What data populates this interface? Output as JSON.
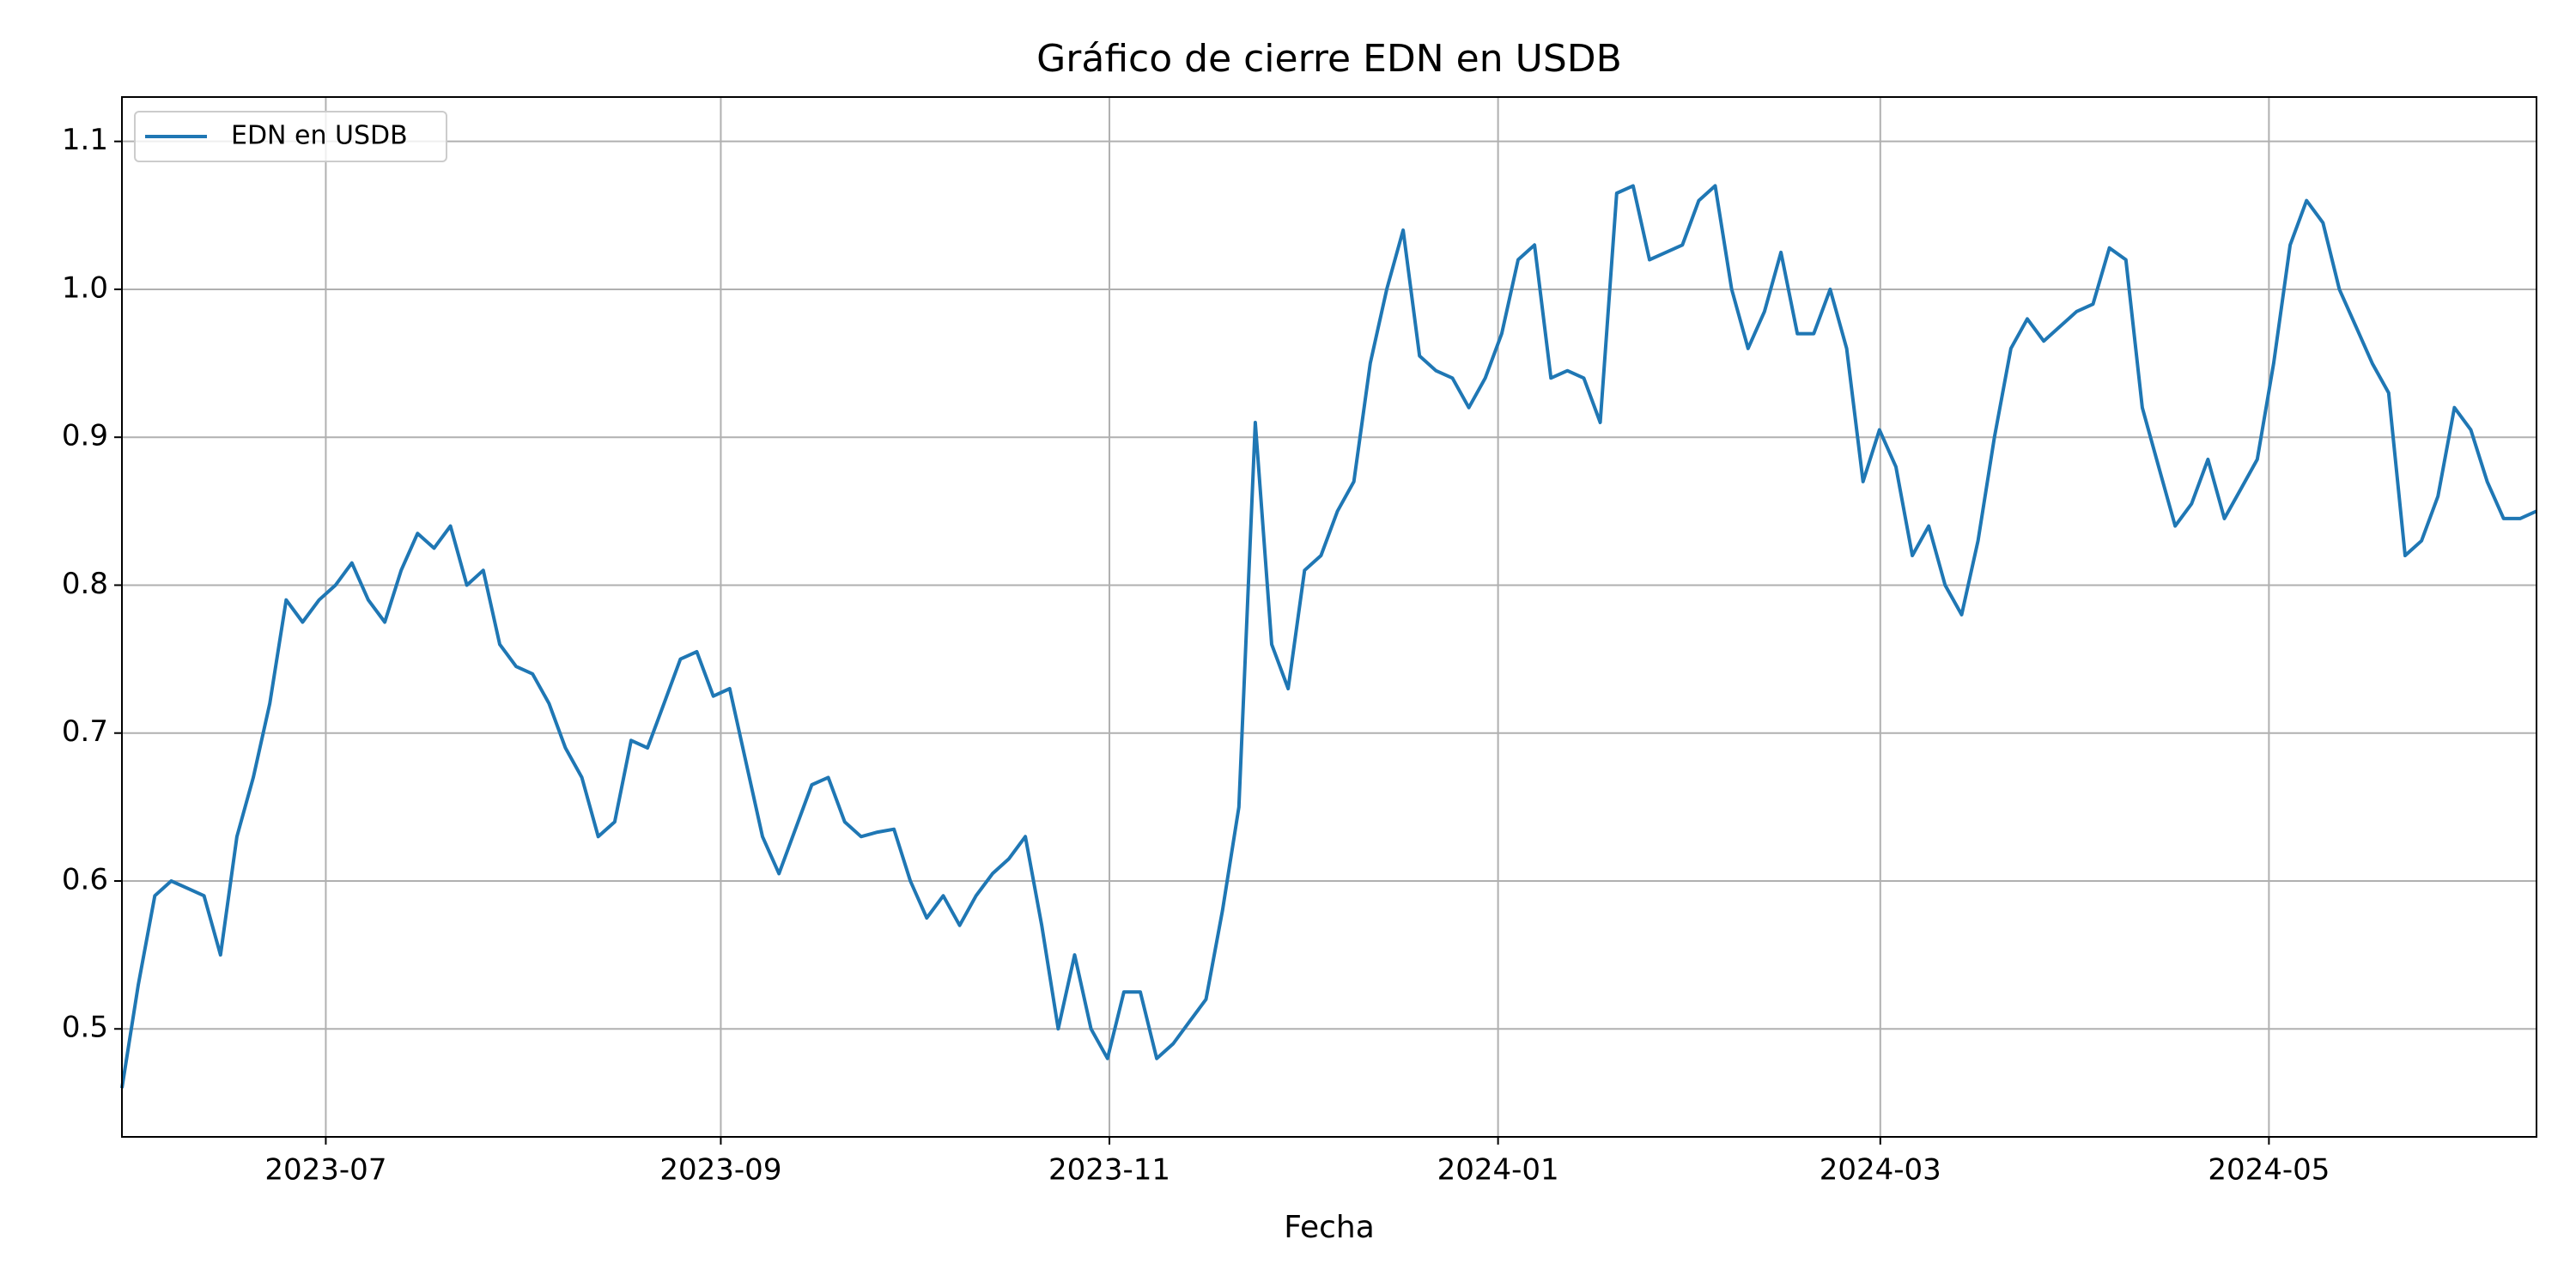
{
  "chart_data": {
    "type": "line",
    "title": "Gráfico de cierre EDN en USDB",
    "x_label": "Fecha",
    "xlim": [
      "2023-05-30",
      "2024-06-12"
    ],
    "xticks": [
      "2023-07",
      "2023-09",
      "2023-11",
      "2024-01",
      "2024-03",
      "2024-05"
    ],
    "ylim": [
      0.427,
      1.13
    ],
    "yticks": [
      0.5,
      0.6,
      0.7,
      0.8,
      0.9,
      {
        "value": 1,
        "label": "1.0"
      },
      1.1
    ],
    "grid": true,
    "legend": "upper left",
    "series": [
      {
        "name": "EDN en USDB",
        "color": "#1f77b4",
        "values": [
          0.46,
          0.53,
          0.59,
          0.6,
          0.595,
          0.59,
          0.55,
          0.63,
          0.67,
          0.72,
          0.79,
          0.775,
          0.79,
          0.8,
          0.815,
          0.79,
          0.775,
          0.81,
          0.835,
          0.825,
          0.84,
          0.8,
          0.81,
          0.76,
          0.745,
          0.74,
          0.72,
          0.69,
          0.67,
          0.63,
          0.64,
          0.695,
          0.69,
          0.72,
          0.75,
          0.755,
          0.725,
          0.73,
          0.68,
          0.63,
          0.605,
          0.635,
          0.665,
          0.67,
          0.64,
          0.63,
          0.633,
          0.635,
          0.6,
          0.575,
          0.59,
          0.57,
          0.59,
          0.605,
          0.615,
          0.63,
          0.57,
          0.5,
          0.55,
          0.5,
          0.48,
          0.525,
          0.525,
          0.48,
          0.49,
          0.505,
          0.52,
          0.58,
          0.65,
          0.91,
          0.76,
          0.73,
          0.81,
          0.82,
          0.85,
          0.87,
          0.95,
          1.0,
          1.04,
          0.955,
          0.945,
          0.94,
          0.92,
          0.94,
          0.97,
          1.02,
          1.03,
          0.94,
          0.945,
          0.94,
          0.91,
          1.065,
          1.07,
          1.02,
          1.025,
          1.03,
          1.06,
          1.07,
          1.0,
          0.96,
          0.985,
          1.025,
          0.97,
          0.97,
          1.0,
          0.96,
          0.87,
          0.905,
          0.88,
          0.82,
          0.84,
          0.8,
          0.78,
          0.83,
          0.9,
          0.96,
          0.98,
          0.965,
          0.975,
          0.985,
          0.99,
          1.028,
          1.02,
          0.92,
          0.88,
          0.84,
          0.855,
          0.885,
          0.845,
          0.865,
          0.885,
          0.95,
          1.03,
          1.06,
          1.045,
          1.0,
          0.975,
          0.95,
          0.93,
          0.82,
          0.83,
          0.86,
          0.92,
          0.905,
          0.87,
          0.845,
          0.845,
          0.85
        ]
      }
    ]
  }
}
